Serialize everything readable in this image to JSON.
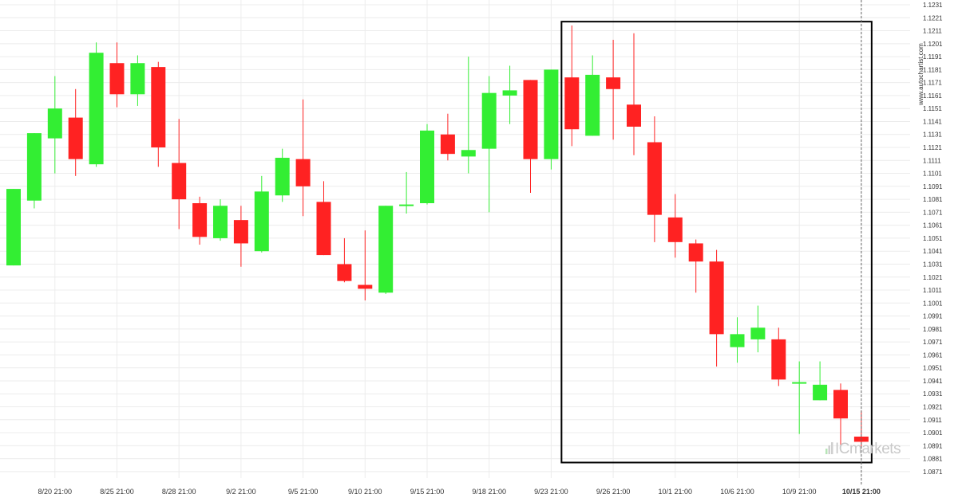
{
  "chart_data": {
    "type": "candlestick",
    "title": "",
    "xlabel": "",
    "ylabel": "",
    "ylim": [
      1.0866,
      1.1231
    ],
    "grid": true,
    "y_ticks": [
      "1.1231",
      "1.1221",
      "1.1211",
      "1.1201",
      "1.1191",
      "1.1181",
      "1.1171",
      "1.1161",
      "1.1151",
      "1.1141",
      "1.1131",
      "1.1121",
      "1.1111",
      "1.1101",
      "1.1091",
      "1.1081",
      "1.1071",
      "1.1061",
      "1.1051",
      "1.1041",
      "1.1031",
      "1.1021",
      "1.1011",
      "1.1001",
      "1.0991",
      "1.0981",
      "1.0971",
      "1.0961",
      "1.0951",
      "1.0941",
      "1.0931",
      "1.0921",
      "1.0911",
      "1.0901",
      "1.0891",
      "1.0881",
      "1.0871"
    ],
    "x_ticks": [
      {
        "label": "8/20 21:00",
        "index": 2
      },
      {
        "label": "8/25 21:00",
        "index": 5
      },
      {
        "label": "8/28 21:00",
        "index": 8
      },
      {
        "label": "9/2 21:00",
        "index": 11
      },
      {
        "label": "9/5 21:00",
        "index": 14
      },
      {
        "label": "9/10 21:00",
        "index": 17
      },
      {
        "label": "9/15 21:00",
        "index": 20
      },
      {
        "label": "9/18 21:00",
        "index": 23
      },
      {
        "label": "9/23 21:00",
        "index": 26
      },
      {
        "label": "9/26 21:00",
        "index": 29
      },
      {
        "label": "10/1 21:00",
        "index": 32
      },
      {
        "label": "10/6 21:00",
        "index": 35
      },
      {
        "label": "10/9 21:00",
        "index": 38
      },
      {
        "label": "10/15 21:00",
        "index": 41
      }
    ],
    "candles": [
      {
        "o": 1.103,
        "h": 1.1089,
        "l": 1.103,
        "c": 1.1089
      },
      {
        "o": 1.108,
        "h": 1.1132,
        "l": 1.1074,
        "c": 1.1132
      },
      {
        "o": 1.1128,
        "h": 1.1176,
        "l": 1.1101,
        "c": 1.1151
      },
      {
        "o": 1.1144,
        "h": 1.1166,
        "l": 1.1099,
        "c": 1.1112
      },
      {
        "o": 1.1108,
        "h": 1.1202,
        "l": 1.1106,
        "c": 1.1194
      },
      {
        "o": 1.1186,
        "h": 1.1202,
        "l": 1.1152,
        "c": 1.1162
      },
      {
        "o": 1.1162,
        "h": 1.1192,
        "l": 1.1153,
        "c": 1.1186
      },
      {
        "o": 1.1183,
        "h": 1.1187,
        "l": 1.1106,
        "c": 1.1121
      },
      {
        "o": 1.1109,
        "h": 1.1143,
        "l": 1.1058,
        "c": 1.1081
      },
      {
        "o": 1.1078,
        "h": 1.1083,
        "l": 1.1046,
        "c": 1.1052
      },
      {
        "o": 1.1051,
        "h": 1.1081,
        "l": 1.1049,
        "c": 1.1076
      },
      {
        "o": 1.1065,
        "h": 1.1076,
        "l": 1.1029,
        "c": 1.1047
      },
      {
        "o": 1.1041,
        "h": 1.1099,
        "l": 1.104,
        "c": 1.1087
      },
      {
        "o": 1.1084,
        "h": 1.112,
        "l": 1.1079,
        "c": 1.1113
      },
      {
        "o": 1.1112,
        "h": 1.1158,
        "l": 1.1068,
        "c": 1.1091
      },
      {
        "o": 1.1079,
        "h": 1.1095,
        "l": 1.1038,
        "c": 1.1038
      },
      {
        "o": 1.1031,
        "h": 1.1051,
        "l": 1.1017,
        "c": 1.1018
      },
      {
        "o": 1.1015,
        "h": 1.1057,
        "l": 1.1003,
        "c": 1.1012
      },
      {
        "o": 1.1009,
        "h": 1.1076,
        "l": 1.1008,
        "c": 1.1076
      },
      {
        "o": 1.1077,
        "h": 1.1102,
        "l": 1.107,
        "c": 1.1077
      },
      {
        "o": 1.1078,
        "h": 1.1139,
        "l": 1.1077,
        "c": 1.1134
      },
      {
        "o": 1.1131,
        "h": 1.1147,
        "l": 1.1111,
        "c": 1.1116
      },
      {
        "o": 1.1114,
        "h": 1.1191,
        "l": 1.1101,
        "c": 1.1119
      },
      {
        "o": 1.112,
        "h": 1.1176,
        "l": 1.1071,
        "c": 1.1163
      },
      {
        "o": 1.1161,
        "h": 1.1184,
        "l": 1.1139,
        "c": 1.1165
      },
      {
        "o": 1.1173,
        "h": 1.1173,
        "l": 1.1086,
        "c": 1.1112
      },
      {
        "o": 1.1112,
        "h": 1.1181,
        "l": 1.1104,
        "c": 1.1181
      },
      {
        "o": 1.1175,
        "h": 1.1215,
        "l": 1.1122,
        "c": 1.1135
      },
      {
        "o": 1.113,
        "h": 1.1192,
        "l": 1.113,
        "c": 1.1177
      },
      {
        "o": 1.1175,
        "h": 1.1204,
        "l": 1.1127,
        "c": 1.1166
      },
      {
        "o": 1.1154,
        "h": 1.1209,
        "l": 1.1115,
        "c": 1.1137
      },
      {
        "o": 1.1125,
        "h": 1.1145,
        "l": 1.1048,
        "c": 1.1069
      },
      {
        "o": 1.1067,
        "h": 1.1085,
        "l": 1.1036,
        "c": 1.1048
      },
      {
        "o": 1.1047,
        "h": 1.105,
        "l": 1.1009,
        "c": 1.1033
      },
      {
        "o": 1.1033,
        "h": 1.1042,
        "l": 1.0952,
        "c": 1.0977
      },
      {
        "o": 1.0967,
        "h": 1.099,
        "l": 1.0955,
        "c": 1.0977
      },
      {
        "o": 1.0973,
        "h": 1.0999,
        "l": 1.0963,
        "c": 1.0982
      },
      {
        "o": 1.0973,
        "h": 1.0982,
        "l": 1.0937,
        "c": 1.0942
      },
      {
        "o": 1.094,
        "h": 1.0956,
        "l": 1.09,
        "c": 1.094
      },
      {
        "o": 1.0926,
        "h": 1.0956,
        "l": 1.0926,
        "c": 1.0938
      },
      {
        "o": 1.0934,
        "h": 1.0939,
        "l": 1.0889,
        "c": 1.0912
      },
      {
        "o": 1.0898,
        "h": 1.0918,
        "l": 1.0889,
        "c": 1.0894
      }
    ],
    "highlight_range": {
      "from_index": 26.5,
      "to_index": 41.5,
      "high": 1.1218,
      "low": 1.0878
    },
    "last_candle_marker_index": 41
  },
  "colors": {
    "bull": "#33ee33",
    "bear": "#ff2222",
    "grid": "#ececec",
    "frame": "#000000",
    "marker": "#666666",
    "logo_accent": "#b7e4b7"
  },
  "watermark": {
    "text": "www.autochartist.com"
  },
  "brand": {
    "logo_icon": "bars-icon",
    "text": "ICmarkets"
  }
}
